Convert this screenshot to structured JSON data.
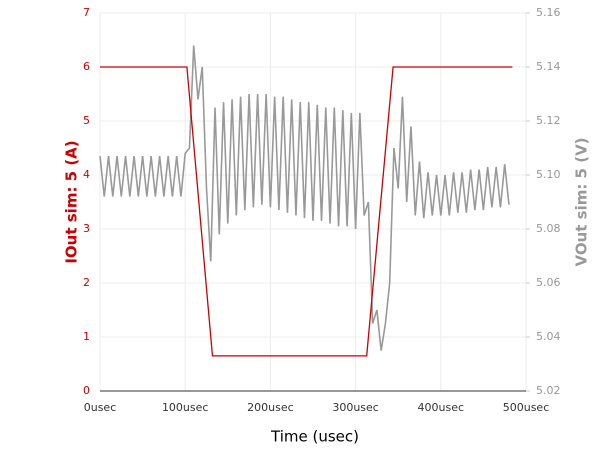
{
  "chart_data": {
    "type": "line",
    "xlabel": "Time (usec)",
    "ylabel": "IOut sim: 5 (A)",
    "y2label": "VOut sim: 5 (V)",
    "xlim": [
      0,
      500
    ],
    "xticks": [
      {
        "value": 0,
        "label": "0usec"
      },
      {
        "value": 100,
        "label": "100usec"
      },
      {
        "value": 200,
        "label": "200usec"
      },
      {
        "value": 300,
        "label": "300usec"
      },
      {
        "value": 400,
        "label": "400usec"
      },
      {
        "value": 500,
        "label": "500usec"
      }
    ],
    "ylim": [
      0,
      7
    ],
    "yticks": [
      0,
      1,
      2,
      3,
      4,
      5,
      6,
      7
    ],
    "y2lim": [
      5.02,
      5.16
    ],
    "y2ticks": [
      5.02,
      5.04,
      5.06,
      5.08,
      {
        "value": 5.1,
        "label": "5.10"
      },
      5.12,
      5.14,
      5.16
    ],
    "grid": true,
    "ycolor": "#cc0000",
    "y2color": "#999999",
    "series": [
      {
        "color": "#cc0000",
        "axis": "y",
        "x": [
          0,
          102,
          132,
          313,
          344,
          484
        ],
        "values": [
          6,
          6,
          0.65,
          0.65,
          6,
          6
        ]
      },
      {
        "color": "#999999",
        "axis": "y2",
        "x": [
          0,
          5,
          10,
          15,
          20,
          25,
          30,
          35,
          40,
          45,
          50,
          55,
          60,
          65,
          70,
          75,
          80,
          85,
          90,
          95,
          100,
          105,
          110,
          115,
          120,
          125,
          130,
          135,
          140,
          145,
          150,
          155,
          160,
          165,
          170,
          175,
          180,
          185,
          190,
          195,
          200,
          205,
          210,
          215,
          220,
          225,
          230,
          235,
          240,
          245,
          250,
          255,
          260,
          265,
          270,
          275,
          280,
          285,
          290,
          295,
          300,
          305,
          310,
          315,
          320,
          325,
          330,
          335,
          340,
          345,
          350,
          355,
          360,
          365,
          370,
          375,
          380,
          385,
          390,
          395,
          400,
          405,
          410,
          415,
          420,
          425,
          430,
          435,
          440,
          445,
          450,
          455,
          460,
          465,
          470,
          475,
          480
        ],
        "values": [
          5.107,
          5.092,
          5.107,
          5.092,
          5.107,
          5.092,
          5.107,
          5.092,
          5.107,
          5.092,
          5.107,
          5.092,
          5.107,
          5.092,
          5.107,
          5.092,
          5.107,
          5.092,
          5.107,
          5.092,
          5.108,
          5.11,
          5.148,
          5.128,
          5.14,
          5.095,
          5.068,
          5.125,
          5.078,
          5.127,
          5.082,
          5.128,
          5.085,
          5.129,
          5.087,
          5.13,
          5.088,
          5.13,
          5.089,
          5.13,
          5.088,
          5.129,
          5.087,
          5.129,
          5.086,
          5.128,
          5.085,
          5.127,
          5.084,
          5.127,
          5.083,
          5.126,
          5.083,
          5.125,
          5.082,
          5.125,
          5.081,
          5.124,
          5.081,
          5.123,
          5.08,
          5.123,
          5.085,
          5.09,
          5.045,
          5.05,
          5.035,
          5.045,
          5.06,
          5.11,
          5.095,
          5.129,
          5.09,
          5.118,
          5.085,
          5.105,
          5.084,
          5.101,
          5.085,
          5.1,
          5.085,
          5.1,
          5.085,
          5.101,
          5.086,
          5.101,
          5.086,
          5.102,
          5.087,
          5.102,
          5.087,
          5.103,
          5.088,
          5.103,
          5.088,
          5.104,
          5.089
        ]
      }
    ]
  }
}
